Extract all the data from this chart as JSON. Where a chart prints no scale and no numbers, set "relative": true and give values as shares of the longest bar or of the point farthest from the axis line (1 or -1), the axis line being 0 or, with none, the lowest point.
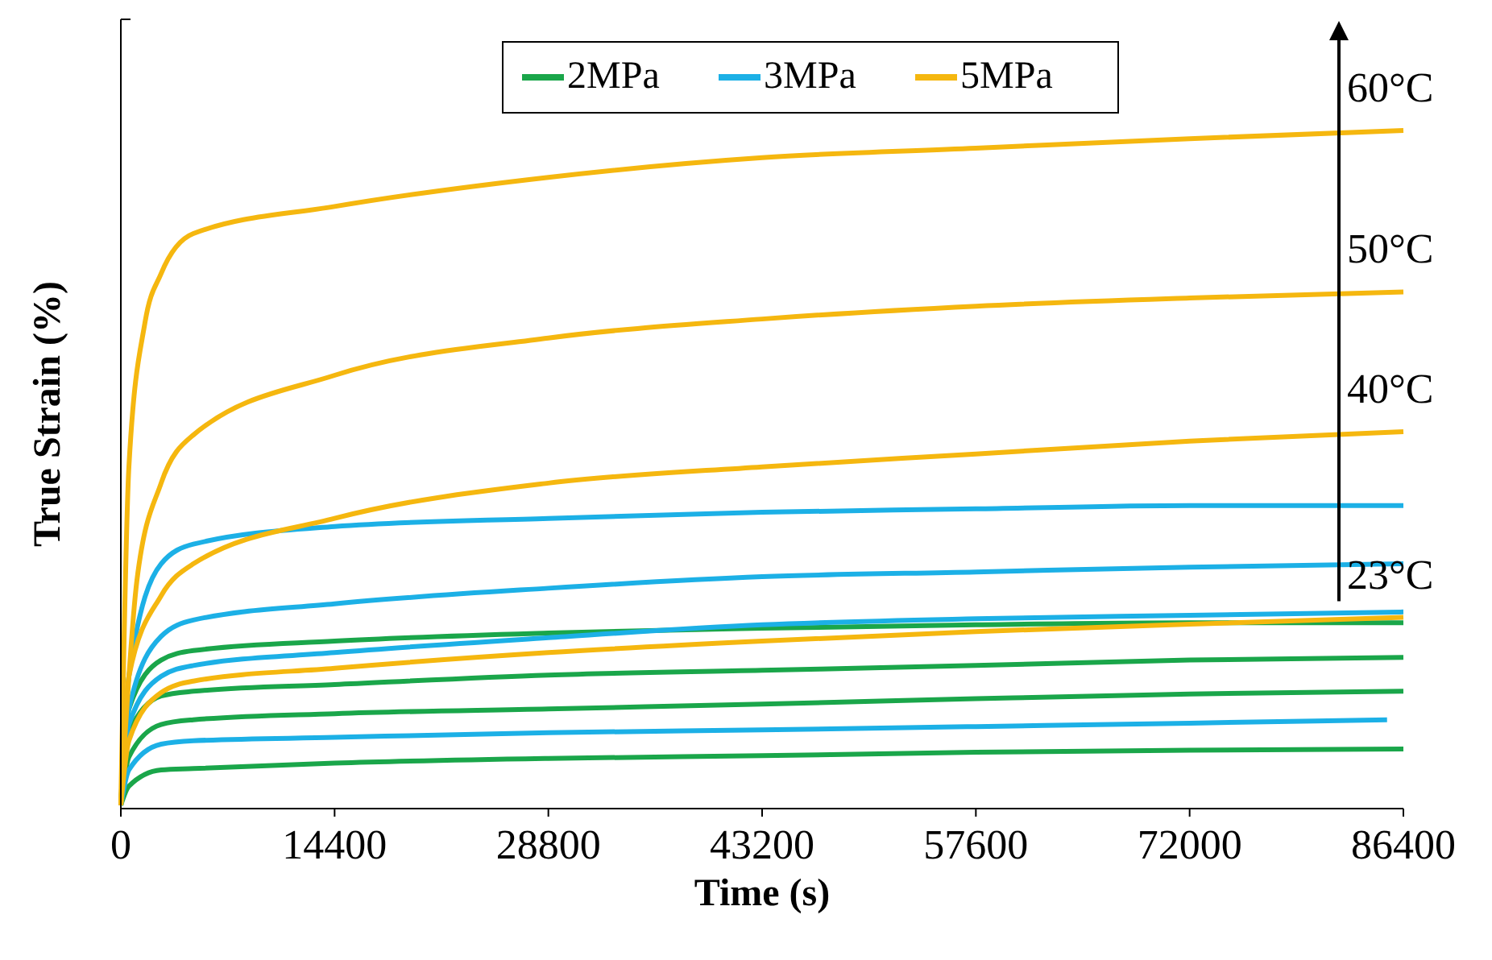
{
  "chart_data": {
    "type": "line",
    "relative": true,
    "xlabel": "Time (s)",
    "ylabel": "True Strain (%)",
    "xlim": [
      0,
      86400
    ],
    "xticks": [
      0,
      14400,
      28800,
      43200,
      57600,
      72000,
      86400
    ],
    "legend": "top",
    "grid": false,
    "marker": "none",
    "line_style": "solid",
    "annotations": [
      "60°C",
      "50°C",
      "40°C",
      "23°C"
    ],
    "series": [
      {
        "name": "2MPa",
        "color": "#1aa64a",
        "x": [
          0,
          543,
          2714,
          4884,
          14400,
          28800,
          43200,
          57600,
          72000,
          86400
        ],
        "values": [
          0.005,
          0.147,
          0.219,
          0.233,
          0.247,
          0.259,
          0.266,
          0.271,
          0.274,
          0.274
        ]
      },
      {
        "color": "#1aa64a",
        "x": [
          0,
          543,
          2714,
          4884,
          14400,
          28800,
          43200,
          57600,
          72000,
          86400
        ],
        "values": [
          0.005,
          0.112,
          0.166,
          0.173,
          0.183,
          0.197,
          0.204,
          0.211,
          0.219,
          0.223
        ]
      },
      {
        "color": "#1aa64a",
        "x": [
          0,
          543,
          2714,
          4884,
          14400,
          28800,
          43200,
          57600,
          72000,
          86400
        ],
        "values": [
          0.005,
          0.076,
          0.124,
          0.131,
          0.14,
          0.147,
          0.154,
          0.162,
          0.169,
          0.173
        ]
      },
      {
        "color": "#1aa64a",
        "x": [
          0,
          543,
          2714,
          4884,
          14400,
          28800,
          43200,
          57600,
          72000,
          86400
        ],
        "values": [
          0.005,
          0.033,
          0.057,
          0.059,
          0.067,
          0.074,
          0.078,
          0.083,
          0.086,
          0.088
        ]
      },
      {
        "name": "3MPa",
        "color": "#1cb0e6",
        "x": [
          0,
          543,
          2714,
          4884,
          14400,
          28800,
          43200,
          57600,
          72000,
          86400
        ],
        "values": [
          0.005,
          0.195,
          0.361,
          0.39,
          0.416,
          0.428,
          0.437,
          0.442,
          0.447,
          0.447
        ]
      },
      {
        "color": "#1cb0e6",
        "x": [
          0,
          543,
          2714,
          4884,
          14400,
          28800,
          43200,
          57600,
          72000,
          86400
        ],
        "values": [
          0.005,
          0.147,
          0.254,
          0.278,
          0.302,
          0.325,
          0.342,
          0.349,
          0.356,
          0.361
        ]
      },
      {
        "color": "#1cb0e6",
        "x": [
          0,
          543,
          2714,
          4884,
          14400,
          28800,
          43200,
          57600,
          72000,
          86400
        ],
        "values": [
          0.005,
          0.124,
          0.195,
          0.211,
          0.23,
          0.252,
          0.271,
          0.28,
          0.285,
          0.29
        ]
      },
      {
        "color": "#1cb0e6",
        "x": [
          0,
          543,
          2714,
          4884,
          14400,
          28800,
          43200,
          57600,
          72000,
          85300
        ],
        "values": [
          0.005,
          0.057,
          0.095,
          0.1,
          0.105,
          0.112,
          0.116,
          0.121,
          0.126,
          0.131
        ]
      },
      {
        "name": "5MPa",
        "color": "#f5b70f",
        "x": [
          0,
          543,
          1628,
          2714,
          4884,
          14400,
          28800,
          43200,
          57600,
          72000,
          86400
        ],
        "values": [
          0.005,
          0.504,
          0.717,
          0.789,
          0.848,
          0.888,
          0.931,
          0.96,
          0.974,
          0.988,
          1
        ]
      },
      {
        "color": "#f5b70f",
        "x": [
          0,
          1085,
          2714,
          4884,
          14400,
          28800,
          43200,
          57600,
          72000,
          86400
        ],
        "values": [
          0.005,
          0.337,
          0.48,
          0.551,
          0.639,
          0.694,
          0.722,
          0.741,
          0.753,
          0.762
        ]
      },
      {
        "color": "#f5b70f",
        "x": [
          0,
          543,
          2714,
          4884,
          14400,
          28800,
          43200,
          57600,
          72000,
          86400
        ],
        "values": [
          0.005,
          0.195,
          0.314,
          0.361,
          0.428,
          0.48,
          0.504,
          0.523,
          0.542,
          0.556
        ]
      },
      {
        "color": "#f5b70f",
        "x": [
          0,
          543,
          2714,
          4884,
          14400,
          28800,
          43200,
          57600,
          72000,
          86400
        ],
        "values": [
          0.005,
          0.1,
          0.171,
          0.188,
          0.207,
          0.23,
          0.247,
          0.261,
          0.272,
          0.282
        ]
      }
    ]
  }
}
